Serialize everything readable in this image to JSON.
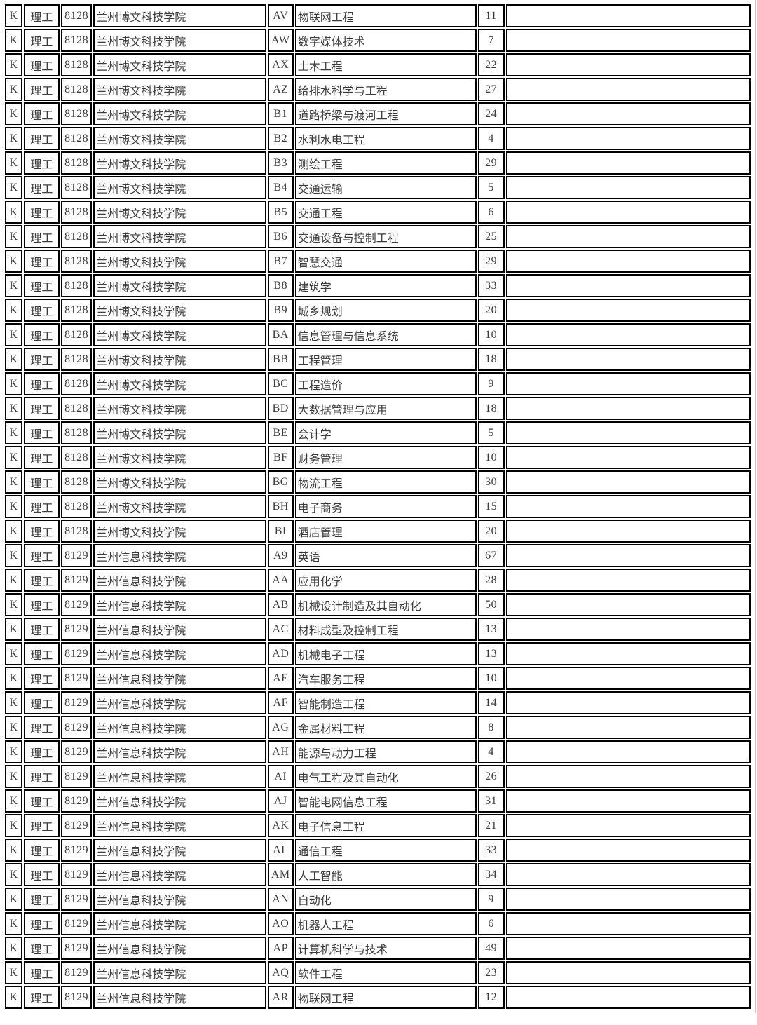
{
  "table": {
    "columns": [
      {
        "key": "category",
        "align": "center"
      },
      {
        "key": "subject_type",
        "align": "center"
      },
      {
        "key": "school_code",
        "align": "center"
      },
      {
        "key": "school_name",
        "align": "left"
      },
      {
        "key": "major_code",
        "align": "center"
      },
      {
        "key": "major_name",
        "align": "left"
      },
      {
        "key": "plan_count",
        "align": "center"
      },
      {
        "key": "note",
        "align": "left"
      }
    ],
    "rows": [
      {
        "category": "K",
        "subject_type": "理工",
        "school_code": "8128",
        "school_name": "兰州博文科技学院",
        "major_code": "AV",
        "major_name": "物联网工程",
        "plan_count": "11",
        "note": ""
      },
      {
        "category": "K",
        "subject_type": "理工",
        "school_code": "8128",
        "school_name": "兰州博文科技学院",
        "major_code": "AW",
        "major_name": "数字媒体技术",
        "plan_count": "7",
        "note": ""
      },
      {
        "category": "K",
        "subject_type": "理工",
        "school_code": "8128",
        "school_name": "兰州博文科技学院",
        "major_code": "AX",
        "major_name": "土木工程",
        "plan_count": "22",
        "note": ""
      },
      {
        "category": "K",
        "subject_type": "理工",
        "school_code": "8128",
        "school_name": "兰州博文科技学院",
        "major_code": "AZ",
        "major_name": "给排水科学与工程",
        "plan_count": "27",
        "note": ""
      },
      {
        "category": "K",
        "subject_type": "理工",
        "school_code": "8128",
        "school_name": "兰州博文科技学院",
        "major_code": "B1",
        "major_name": "道路桥梁与渡河工程",
        "plan_count": "24",
        "note": ""
      },
      {
        "category": "K",
        "subject_type": "理工",
        "school_code": "8128",
        "school_name": "兰州博文科技学院",
        "major_code": "B2",
        "major_name": "水利水电工程",
        "plan_count": "4",
        "note": ""
      },
      {
        "category": "K",
        "subject_type": "理工",
        "school_code": "8128",
        "school_name": "兰州博文科技学院",
        "major_code": "B3",
        "major_name": "测绘工程",
        "plan_count": "29",
        "note": ""
      },
      {
        "category": "K",
        "subject_type": "理工",
        "school_code": "8128",
        "school_name": "兰州博文科技学院",
        "major_code": "B4",
        "major_name": "交通运输",
        "plan_count": "5",
        "note": ""
      },
      {
        "category": "K",
        "subject_type": "理工",
        "school_code": "8128",
        "school_name": "兰州博文科技学院",
        "major_code": "B5",
        "major_name": "交通工程",
        "plan_count": "6",
        "note": ""
      },
      {
        "category": "K",
        "subject_type": "理工",
        "school_code": "8128",
        "school_name": "兰州博文科技学院",
        "major_code": "B6",
        "major_name": "交通设备与控制工程",
        "plan_count": "25",
        "note": ""
      },
      {
        "category": "K",
        "subject_type": "理工",
        "school_code": "8128",
        "school_name": "兰州博文科技学院",
        "major_code": "B7",
        "major_name": "智慧交通",
        "plan_count": "29",
        "note": ""
      },
      {
        "category": "K",
        "subject_type": "理工",
        "school_code": "8128",
        "school_name": "兰州博文科技学院",
        "major_code": "B8",
        "major_name": "建筑学",
        "plan_count": "33",
        "note": ""
      },
      {
        "category": "K",
        "subject_type": "理工",
        "school_code": "8128",
        "school_name": "兰州博文科技学院",
        "major_code": "B9",
        "major_name": "城乡规划",
        "plan_count": "20",
        "note": ""
      },
      {
        "category": "K",
        "subject_type": "理工",
        "school_code": "8128",
        "school_name": "兰州博文科技学院",
        "major_code": "BA",
        "major_name": "信息管理与信息系统",
        "plan_count": "10",
        "note": ""
      },
      {
        "category": "K",
        "subject_type": "理工",
        "school_code": "8128",
        "school_name": "兰州博文科技学院",
        "major_code": "BB",
        "major_name": "工程管理",
        "plan_count": "18",
        "note": ""
      },
      {
        "category": "K",
        "subject_type": "理工",
        "school_code": "8128",
        "school_name": "兰州博文科技学院",
        "major_code": "BC",
        "major_name": "工程造价",
        "plan_count": "9",
        "note": ""
      },
      {
        "category": "K",
        "subject_type": "理工",
        "school_code": "8128",
        "school_name": "兰州博文科技学院",
        "major_code": "BD",
        "major_name": "大数据管理与应用",
        "plan_count": "18",
        "note": ""
      },
      {
        "category": "K",
        "subject_type": "理工",
        "school_code": "8128",
        "school_name": "兰州博文科技学院",
        "major_code": "BE",
        "major_name": "会计学",
        "plan_count": "5",
        "note": ""
      },
      {
        "category": "K",
        "subject_type": "理工",
        "school_code": "8128",
        "school_name": "兰州博文科技学院",
        "major_code": "BF",
        "major_name": "财务管理",
        "plan_count": "10",
        "note": ""
      },
      {
        "category": "K",
        "subject_type": "理工",
        "school_code": "8128",
        "school_name": "兰州博文科技学院",
        "major_code": "BG",
        "major_name": "物流工程",
        "plan_count": "30",
        "note": ""
      },
      {
        "category": "K",
        "subject_type": "理工",
        "school_code": "8128",
        "school_name": "兰州博文科技学院",
        "major_code": "BH",
        "major_name": "电子商务",
        "plan_count": "15",
        "note": ""
      },
      {
        "category": "K",
        "subject_type": "理工",
        "school_code": "8128",
        "school_name": "兰州博文科技学院",
        "major_code": "BI",
        "major_name": "酒店管理",
        "plan_count": "20",
        "note": ""
      },
      {
        "category": "K",
        "subject_type": "理工",
        "school_code": "8129",
        "school_name": "兰州信息科技学院",
        "major_code": "A9",
        "major_name": "英语",
        "plan_count": "67",
        "note": ""
      },
      {
        "category": "K",
        "subject_type": "理工",
        "school_code": "8129",
        "school_name": "兰州信息科技学院",
        "major_code": "AA",
        "major_name": "应用化学",
        "plan_count": "28",
        "note": ""
      },
      {
        "category": "K",
        "subject_type": "理工",
        "school_code": "8129",
        "school_name": "兰州信息科技学院",
        "major_code": "AB",
        "major_name": "机械设计制造及其自动化",
        "plan_count": "50",
        "note": ""
      },
      {
        "category": "K",
        "subject_type": "理工",
        "school_code": "8129",
        "school_name": "兰州信息科技学院",
        "major_code": "AC",
        "major_name": "材料成型及控制工程",
        "plan_count": "13",
        "note": ""
      },
      {
        "category": "K",
        "subject_type": "理工",
        "school_code": "8129",
        "school_name": "兰州信息科技学院",
        "major_code": "AD",
        "major_name": "机械电子工程",
        "plan_count": "13",
        "note": ""
      },
      {
        "category": "K",
        "subject_type": "理工",
        "school_code": "8129",
        "school_name": "兰州信息科技学院",
        "major_code": "AE",
        "major_name": "汽车服务工程",
        "plan_count": "10",
        "note": ""
      },
      {
        "category": "K",
        "subject_type": "理工",
        "school_code": "8129",
        "school_name": "兰州信息科技学院",
        "major_code": "AF",
        "major_name": "智能制造工程",
        "plan_count": "14",
        "note": ""
      },
      {
        "category": "K",
        "subject_type": "理工",
        "school_code": "8129",
        "school_name": "兰州信息科技学院",
        "major_code": "AG",
        "major_name": "金属材料工程",
        "plan_count": "8",
        "note": ""
      },
      {
        "category": "K",
        "subject_type": "理工",
        "school_code": "8129",
        "school_name": "兰州信息科技学院",
        "major_code": "AH",
        "major_name": "能源与动力工程",
        "plan_count": "4",
        "note": ""
      },
      {
        "category": "K",
        "subject_type": "理工",
        "school_code": "8129",
        "school_name": "兰州信息科技学院",
        "major_code": "AI",
        "major_name": "电气工程及其自动化",
        "plan_count": "26",
        "note": ""
      },
      {
        "category": "K",
        "subject_type": "理工",
        "school_code": "8129",
        "school_name": "兰州信息科技学院",
        "major_code": "AJ",
        "major_name": "智能电网信息工程",
        "plan_count": "31",
        "note": ""
      },
      {
        "category": "K",
        "subject_type": "理工",
        "school_code": "8129",
        "school_name": "兰州信息科技学院",
        "major_code": "AK",
        "major_name": "电子信息工程",
        "plan_count": "21",
        "note": ""
      },
      {
        "category": "K",
        "subject_type": "理工",
        "school_code": "8129",
        "school_name": "兰州信息科技学院",
        "major_code": "AL",
        "major_name": "通信工程",
        "plan_count": "33",
        "note": ""
      },
      {
        "category": "K",
        "subject_type": "理工",
        "school_code": "8129",
        "school_name": "兰州信息科技学院",
        "major_code": "AM",
        "major_name": "人工智能",
        "plan_count": "34",
        "note": ""
      },
      {
        "category": "K",
        "subject_type": "理工",
        "school_code": "8129",
        "school_name": "兰州信息科技学院",
        "major_code": "AN",
        "major_name": "自动化",
        "plan_count": "9",
        "note": ""
      },
      {
        "category": "K",
        "subject_type": "理工",
        "school_code": "8129",
        "school_name": "兰州信息科技学院",
        "major_code": "AO",
        "major_name": "机器人工程",
        "plan_count": "6",
        "note": ""
      },
      {
        "category": "K",
        "subject_type": "理工",
        "school_code": "8129",
        "school_name": "兰州信息科技学院",
        "major_code": "AP",
        "major_name": "计算机科学与技术",
        "plan_count": "49",
        "note": ""
      },
      {
        "category": "K",
        "subject_type": "理工",
        "school_code": "8129",
        "school_name": "兰州信息科技学院",
        "major_code": "AQ",
        "major_name": "软件工程",
        "plan_count": "23",
        "note": ""
      },
      {
        "category": "K",
        "subject_type": "理工",
        "school_code": "8129",
        "school_name": "兰州信息科技学院",
        "major_code": "AR",
        "major_name": "物联网工程",
        "plan_count": "12",
        "note": ""
      }
    ]
  }
}
